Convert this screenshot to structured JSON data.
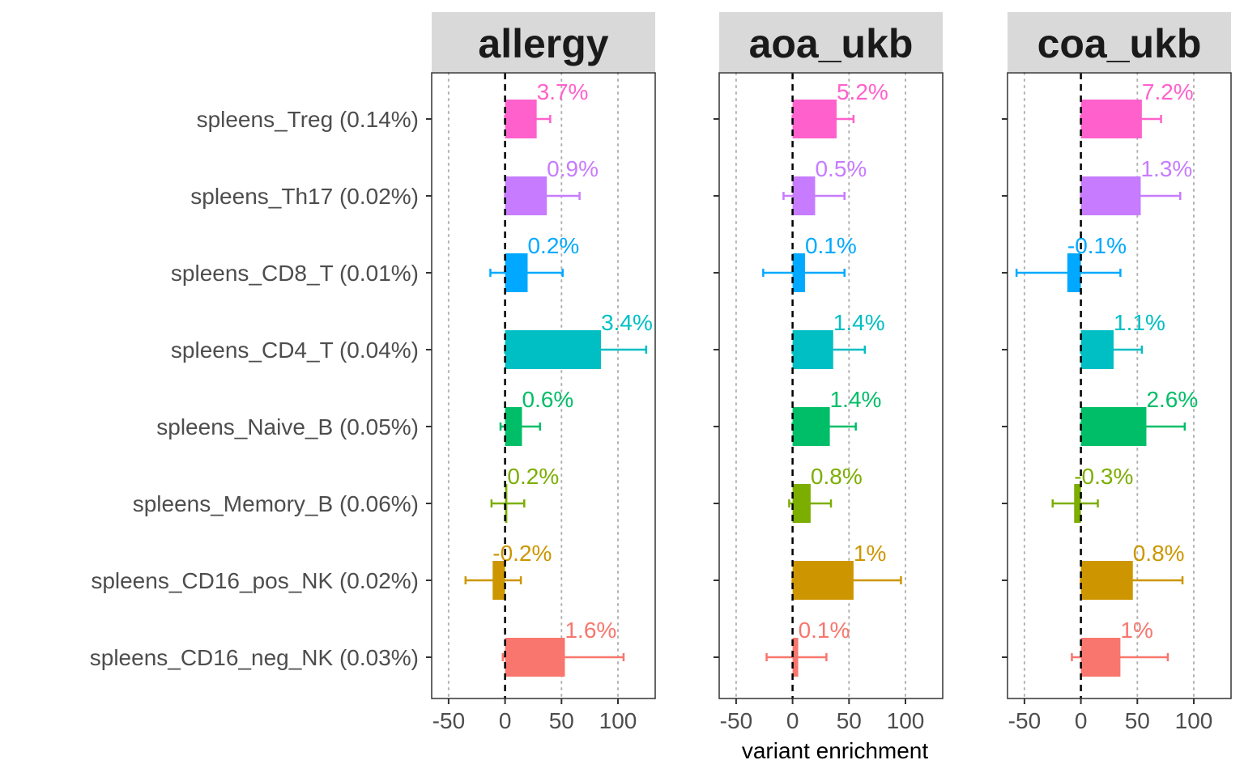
{
  "chart_data": {
    "type": "bar",
    "orientation": "horizontal",
    "xlabel": "variant enrichment",
    "ylabel": "",
    "xlim": [
      -65,
      133
    ],
    "xticks": [
      -50,
      0,
      50,
      100
    ],
    "xtick_labels": [
      "-50",
      "0",
      "50",
      "100"
    ],
    "vertical_grid": "dotted",
    "reference_line": {
      "x": 0,
      "style": "dashed"
    },
    "categories": [
      "spleens_Treg (0.14%)",
      "spleens_Th17 (0.02%)",
      "spleens_CD8_T (0.01%)",
      "spleens_CD4_T (0.04%)",
      "spleens_Naive_B (0.05%)",
      "spleens_Memory_B (0.06%)",
      "spleens_CD16_pos_NK (0.02%)",
      "spleens_CD16_neg_NK (0.03%)"
    ],
    "colors": [
      "#FF61CC",
      "#C77CFF",
      "#00A9FF",
      "#00BFC4",
      "#00BE67",
      "#7CAE00",
      "#CD9600",
      "#F8766D"
    ],
    "panels": [
      {
        "title": "allergy",
        "values": [
          28,
          37,
          20,
          85,
          15,
          2,
          -11,
          53
        ],
        "err_low": [
          0,
          0,
          -13,
          0,
          -4,
          -12,
          -35,
          -2
        ],
        "err_high": [
          40,
          66,
          51,
          125,
          31,
          17,
          14,
          105
        ],
        "labels": [
          "3.7%",
          "0.9%",
          "0.2%",
          "3.4%",
          "0.6%",
          "0.2%",
          "-0.2%",
          "1.6%"
        ]
      },
      {
        "title": "aoa_ukb",
        "values": [
          39,
          20,
          11,
          36,
          33,
          16,
          54,
          5
        ],
        "err_low": [
          0,
          -8,
          -26,
          0,
          0,
          -3,
          0,
          -23
        ],
        "err_high": [
          54,
          46,
          46,
          64,
          56,
          34,
          96,
          30
        ],
        "labels": [
          "5.2%",
          "0.5%",
          "0.1%",
          "1.4%",
          "1.4%",
          "0.8%",
          "1%",
          "0.1%"
        ]
      },
      {
        "title": "coa_ukb",
        "values": [
          54,
          53,
          -12,
          29,
          58,
          -6,
          46,
          35
        ],
        "err_low": [
          0,
          0,
          -57,
          0,
          0,
          -25,
          0,
          -8
        ],
        "err_high": [
          71,
          88,
          35,
          54,
          92,
          15,
          90,
          77
        ],
        "labels": [
          "7.2%",
          "1.3%",
          "-0.1%",
          "1.1%",
          "2.6%",
          "-0.3%",
          "0.8%",
          "1%"
        ]
      }
    ]
  }
}
